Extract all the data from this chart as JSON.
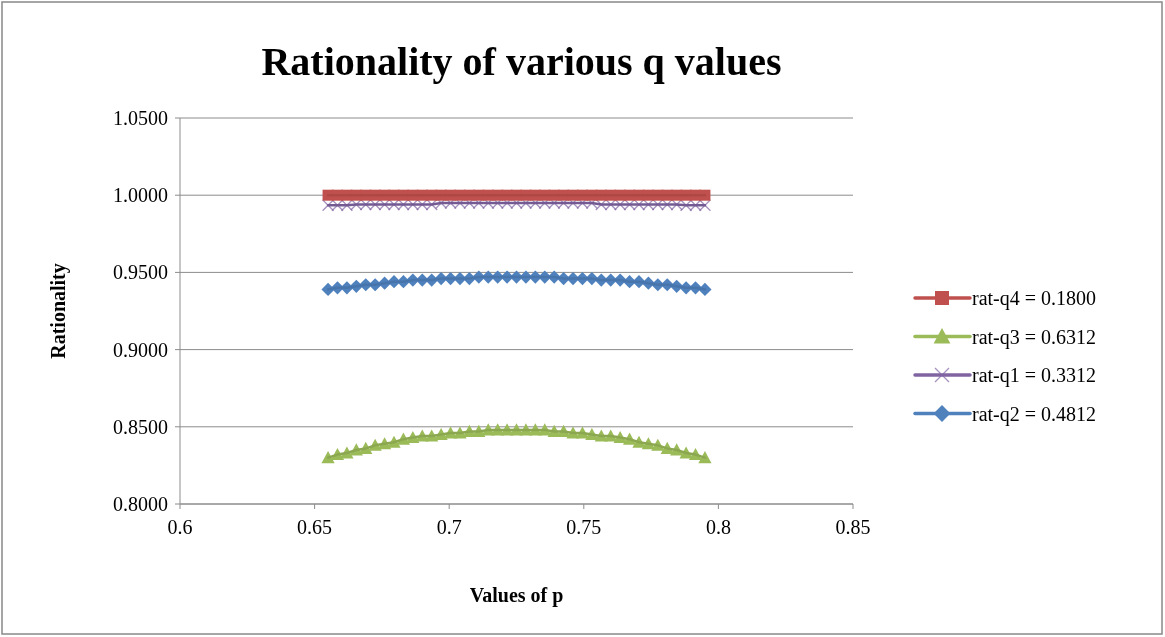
{
  "chart_data": {
    "type": "line",
    "title": "Rationality of various q values",
    "xlabel": "Values of p",
    "ylabel": "Rationality",
    "x": [
      0.655,
      0.6585,
      0.662,
      0.6655,
      0.669,
      0.6725,
      0.676,
      0.6795,
      0.683,
      0.6865,
      0.69,
      0.6935,
      0.697,
      0.7005,
      0.704,
      0.7075,
      0.711,
      0.7145,
      0.718,
      0.7215,
      0.725,
      0.7285,
      0.732,
      0.7355,
      0.739,
      0.7425,
      0.746,
      0.7495,
      0.753,
      0.7565,
      0.76,
      0.7635,
      0.767,
      0.7705,
      0.774,
      0.7775,
      0.781,
      0.7845,
      0.788,
      0.7915,
      0.795
    ],
    "series": [
      {
        "name": "rat-q4 = 0.1800",
        "color": "#c0504d",
        "marker": "square",
        "values": [
          1,
          1,
          1,
          1,
          1,
          1,
          1,
          1,
          1,
          1,
          1,
          1,
          1,
          1,
          1,
          1,
          1,
          1,
          1,
          1,
          1,
          1,
          1,
          1,
          1,
          1,
          1,
          1,
          1,
          1,
          1,
          1,
          1,
          1,
          1,
          1,
          1,
          1,
          1,
          1,
          1
        ]
      },
      {
        "name": "rat-q3 = 0.6312",
        "color": "#9bbb59",
        "marker": "triangle",
        "values": [
          0.83,
          0.832,
          0.833,
          0.835,
          0.836,
          0.838,
          0.839,
          0.84,
          0.842,
          0.843,
          0.844,
          0.844,
          0.845,
          0.846,
          0.846,
          0.847,
          0.847,
          0.848,
          0.848,
          0.848,
          0.848,
          0.848,
          0.848,
          0.848,
          0.847,
          0.847,
          0.846,
          0.846,
          0.845,
          0.844,
          0.844,
          0.843,
          0.842,
          0.84,
          0.839,
          0.838,
          0.836,
          0.835,
          0.833,
          0.832,
          0.83
        ]
      },
      {
        "name": "rat-q1 = 0.3312",
        "color": "#8064a2",
        "marker": "cross",
        "values": [
          0.9935,
          0.9935,
          0.9935,
          0.994,
          0.994,
          0.994,
          0.994,
          0.994,
          0.994,
          0.994,
          0.994,
          0.994,
          0.995,
          0.995,
          0.995,
          0.995,
          0.995,
          0.995,
          0.995,
          0.995,
          0.995,
          0.995,
          0.995,
          0.995,
          0.995,
          0.995,
          0.995,
          0.995,
          0.995,
          0.994,
          0.994,
          0.994,
          0.994,
          0.994,
          0.994,
          0.994,
          0.994,
          0.994,
          0.9935,
          0.9935,
          0.9935
        ]
      },
      {
        "name": "rat-q2 = 0.4812",
        "color": "#4f81bd",
        "marker": "diamond",
        "values": [
          0.939,
          0.94,
          0.94,
          0.941,
          0.942,
          0.942,
          0.943,
          0.944,
          0.944,
          0.945,
          0.945,
          0.945,
          0.946,
          0.946,
          0.946,
          0.946,
          0.947,
          0.947,
          0.947,
          0.947,
          0.947,
          0.947,
          0.947,
          0.947,
          0.947,
          0.946,
          0.946,
          0.946,
          0.946,
          0.945,
          0.945,
          0.945,
          0.944,
          0.944,
          0.943,
          0.942,
          0.942,
          0.941,
          0.94,
          0.94,
          0.939
        ]
      }
    ],
    "xlim": [
      0.6,
      0.85
    ],
    "xticks": [
      0.6,
      0.65,
      0.7,
      0.75,
      0.8,
      0.85
    ],
    "ylim": [
      0.8,
      1.05
    ],
    "yticks": [
      {
        "value": 0.8,
        "label": "0.8000"
      },
      {
        "value": 0.85,
        "label": "0.8500"
      },
      {
        "value": 0.9,
        "label": "0.9000"
      },
      {
        "value": 0.95,
        "label": "0.9500"
      },
      {
        "value": 1,
        "label": "1.0000"
      },
      {
        "value": 1.05,
        "label": "1.0500"
      }
    ],
    "grid": "y",
    "legend": "right",
    "line_style": "solid"
  }
}
